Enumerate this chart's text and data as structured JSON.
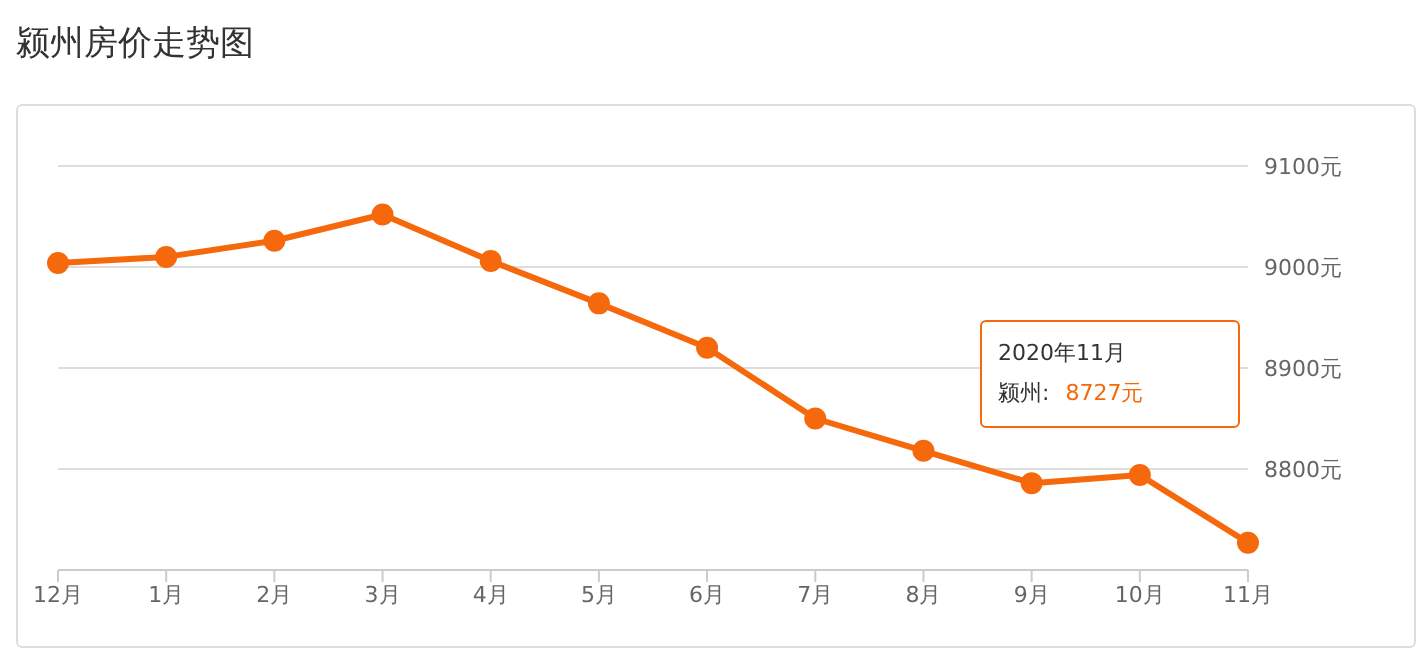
{
  "chart_data": {
    "type": "line",
    "title": "颍州房价走势图",
    "categories": [
      "12月",
      "1月",
      "2月",
      "3月",
      "4月",
      "5月",
      "6月",
      "7月",
      "8月",
      "9月",
      "10月",
      "11月"
    ],
    "series": [
      {
        "name": "颍州",
        "color": "#f5690c",
        "values": [
          9004,
          9010,
          9026,
          9052,
          9006,
          8964,
          8920,
          8850,
          8818,
          8786,
          8794,
          8727
        ]
      }
    ],
    "ylim": [
      8700,
      9100
    ],
    "yticks": [
      {
        "value": 8700,
        "label": null
      },
      {
        "value": 8800,
        "label": "8800元"
      },
      {
        "value": 8900,
        "label": "8900元"
      },
      {
        "value": 9000,
        "label": "9000元"
      },
      {
        "value": 9100,
        "label": "9100元"
      }
    ],
    "grid": "y",
    "marker": "circle",
    "legend": false,
    "annotations": [
      "2020年11月",
      ":",
      "8727元"
    ]
  }
}
